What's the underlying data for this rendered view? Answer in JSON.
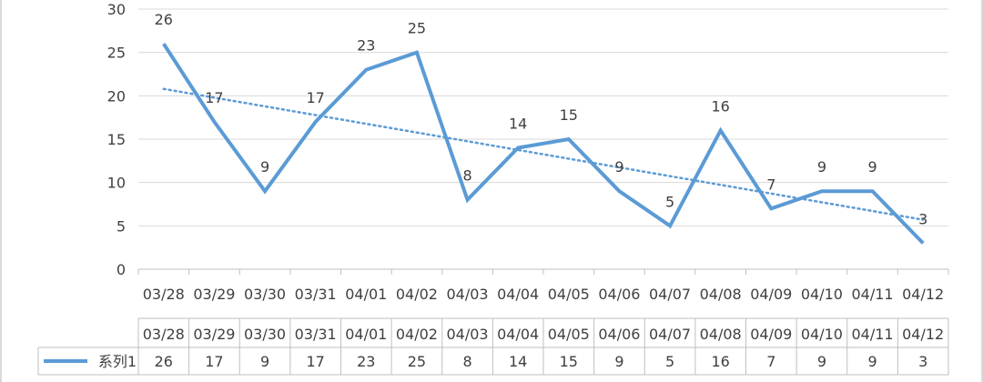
{
  "chart_data": {
    "type": "line",
    "title": "",
    "xlabel": "",
    "ylabel": "",
    "ylim": [
      0,
      30
    ],
    "yticks": [
      0,
      5,
      10,
      15,
      20,
      25,
      30
    ],
    "categories": [
      "03/28",
      "03/29",
      "03/30",
      "03/31",
      "04/01",
      "04/02",
      "04/03",
      "04/04",
      "04/05",
      "04/06",
      "04/07",
      "04/08",
      "04/09",
      "04/10",
      "04/11",
      "04/12"
    ],
    "series": [
      {
        "name": "系列1",
        "values": [
          26,
          17,
          9,
          17,
          23,
          25,
          8,
          14,
          15,
          9,
          5,
          16,
          7,
          9,
          9,
          3
        ],
        "color": "#5b9bd5"
      }
    ],
    "trendline": {
      "type": "linear",
      "style": "dotted",
      "color": "#5b9bd5"
    },
    "data_labels": true,
    "grid": true,
    "data_table": true,
    "legend": "data-table"
  }
}
